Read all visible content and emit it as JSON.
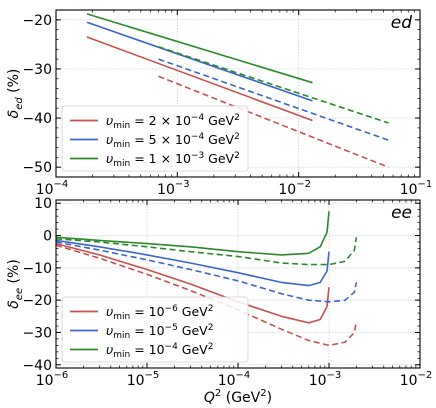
{
  "chart_data": [
    {
      "type": "line",
      "panel_label": "ed",
      "ylabel": "δ_ed (%)",
      "xlabel": "",
      "xscale": "log",
      "xlim": [
        0.0001,
        0.1
      ],
      "ylim": [
        -52,
        -18
      ],
      "grid": true,
      "legend_position": "lower-left",
      "xticks": [
        {
          "value": 0.0001,
          "base": "10",
          "exp": "−4"
        },
        {
          "value": 0.001,
          "base": "10",
          "exp": "−3"
        },
        {
          "value": 0.01,
          "base": "10",
          "exp": "−2"
        },
        {
          "value": 0.1,
          "base": "10",
          "exp": "−1"
        }
      ],
      "yticks": [
        -20,
        -30,
        -40,
        -50
      ],
      "series": [
        {
          "name": "υ_min = 2 × 10⁻⁴ GeV²",
          "legend_pre": "υ",
          "legend_sub": "min",
          "legend_val": " = 2 × 10",
          "legend_exp": "−4",
          "legend_unit": " GeV",
          "legend_unit_exp": "2",
          "color": "#c8504f",
          "style": "solid",
          "x": [
            0.00018,
            0.013
          ],
          "y": [
            -23.5,
            -40.5
          ]
        },
        {
          "name": "",
          "color": "#c8504f",
          "style": "dashed",
          "x": [
            0.0007,
            0.055
          ],
          "y": [
            -31.5,
            -50
          ]
        },
        {
          "name": "υ_min = 5 × 10⁻⁴ GeV²",
          "legend_pre": "υ",
          "legend_sub": "min",
          "legend_val": " = 5 × 10",
          "legend_exp": "−4",
          "legend_unit": " GeV",
          "legend_unit_exp": "2",
          "color": "#3b64cc",
          "style": "solid",
          "x": [
            0.00018,
            0.013
          ],
          "y": [
            -20.5,
            -36.5
          ]
        },
        {
          "name": "",
          "color": "#3b64cc",
          "style": "dashed",
          "x": [
            0.0007,
            0.055
          ],
          "y": [
            -28,
            -44.5
          ]
        },
        {
          "name": "υ_min = 1 × 10⁻³ GeV²",
          "legend_pre": "υ",
          "legend_sub": "min",
          "legend_val": " = 1 × 10",
          "legend_exp": "−3",
          "legend_unit": " GeV",
          "legend_unit_exp": "2",
          "color": "#2a8a2a",
          "style": "solid",
          "x": [
            0.00018,
            0.013
          ],
          "y": [
            -18.8,
            -32.8
          ]
        },
        {
          "name": "",
          "color": "#2a8a2a",
          "style": "dashed",
          "x": [
            0.0007,
            0.055
          ],
          "y": [
            -25.5,
            -41
          ]
        }
      ]
    },
    {
      "type": "line",
      "panel_label": "ee",
      "ylabel": "δ_ee (%)",
      "xlabel": "Q² (GeV²)",
      "xscale": "log",
      "xlim": [
        1e-06,
        0.01
      ],
      "ylim": [
        -41,
        11
      ],
      "grid": true,
      "legend_position": "lower-left",
      "xticks": [
        {
          "value": 1e-06,
          "base": "10",
          "exp": "−6"
        },
        {
          "value": 1e-05,
          "base": "10",
          "exp": "−5"
        },
        {
          "value": 0.0001,
          "base": "10",
          "exp": "−4"
        },
        {
          "value": 0.001,
          "base": "10",
          "exp": "−3"
        },
        {
          "value": 0.01,
          "base": "10",
          "exp": "−2"
        }
      ],
      "yticks": [
        10,
        0,
        -10,
        -20,
        -30,
        -40
      ],
      "series": [
        {
          "name": "υ_min = 10⁻⁶ GeV²",
          "legend_pre": "υ",
          "legend_sub": "min",
          "legend_val": " = 10",
          "legend_exp": "−6",
          "legend_unit": " GeV",
          "legend_unit_exp": "2",
          "color": "#c8504f",
          "style": "solid",
          "x": [
            1e-06,
            3e-06,
            1e-05,
            3e-05,
            0.0001,
            0.0003,
            0.0006,
            0.0008,
            0.00095,
            0.001
          ],
          "y": [
            -2.5,
            -6,
            -10.5,
            -15,
            -20.5,
            -25,
            -27,
            -26,
            -22,
            -16
          ]
        },
        {
          "name": "",
          "color": "#c8504f",
          "style": "dashed",
          "x": [
            1e-06,
            3e-06,
            1e-05,
            3e-05,
            0.0001,
            0.0003,
            0.0006,
            0.001,
            0.0015,
            0.0019,
            0.002
          ],
          "y": [
            -3,
            -7,
            -12,
            -17,
            -23,
            -29,
            -32.5,
            -34,
            -33,
            -30,
            -26.5
          ]
        },
        {
          "name": "υ_min = 10⁻⁵ GeV²",
          "legend_pre": "υ",
          "legend_sub": "min",
          "legend_val": " = 10",
          "legend_exp": "−5",
          "legend_unit": " GeV",
          "legend_unit_exp": "2",
          "color": "#3b64cc",
          "style": "solid",
          "x": [
            1e-06,
            3e-06,
            1e-05,
            3e-05,
            0.0001,
            0.0003,
            0.0006,
            0.0008,
            0.00095,
            0.001
          ],
          "y": [
            -1.5,
            -3.5,
            -6,
            -8.5,
            -11.5,
            -14.5,
            -15.5,
            -14.5,
            -11,
            -5
          ]
        },
        {
          "name": "",
          "color": "#3b64cc",
          "style": "dashed",
          "x": [
            1e-06,
            3e-06,
            1e-05,
            3e-05,
            0.0001,
            0.0003,
            0.0006,
            0.001,
            0.0015,
            0.0019,
            0.002
          ],
          "y": [
            -2,
            -4.5,
            -7.5,
            -10.5,
            -14,
            -18,
            -20,
            -20.5,
            -20,
            -17.5,
            -14.5
          ]
        },
        {
          "name": "υ_min = 10⁻⁴ GeV²",
          "legend_pre": "υ",
          "legend_sub": "min",
          "legend_val": " = 10",
          "legend_exp": "−4",
          "legend_unit": " GeV",
          "legend_unit_exp": "2",
          "color": "#2a8a2a",
          "style": "solid",
          "x": [
            1e-06,
            3e-06,
            1e-05,
            3e-05,
            0.0001,
            0.0003,
            0.0006,
            0.0008,
            0.00095,
            0.001
          ],
          "y": [
            -0.5,
            -1.5,
            -2.5,
            -3.5,
            -5,
            -6,
            -5.5,
            -3.5,
            1,
            7.5
          ]
        },
        {
          "name": "",
          "color": "#2a8a2a",
          "style": "dashed",
          "x": [
            1e-06,
            3e-06,
            1e-05,
            3e-05,
            0.0001,
            0.0003,
            0.0006,
            0.001,
            0.0015,
            0.0019,
            0.002
          ],
          "y": [
            -1,
            -2,
            -3.5,
            -5,
            -6.5,
            -8.5,
            -9,
            -9,
            -8,
            -4.5,
            -0.5
          ]
        }
      ]
    }
  ]
}
